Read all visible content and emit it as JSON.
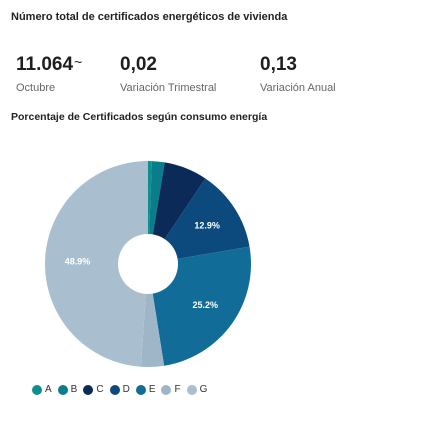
{
  "header": {
    "title": "Número total de certificados energéticos de vivienda"
  },
  "stats": [
    {
      "value": "11.064",
      "arrow": "~",
      "label": "Octubre"
    },
    {
      "value": "0,02",
      "label": "Variación Trimestral"
    },
    {
      "value": "0,13",
      "label": "Variación Anual"
    }
  ],
  "chart_data": {
    "type": "pie",
    "variant": "donut",
    "title": "Porcentaje de Certificados según consumo energía",
    "categories": [
      "A",
      "B",
      "C",
      "D",
      "E",
      "F",
      "G"
    ],
    "values": [
      0.6,
      2.0,
      6.8,
      12.9,
      25.2,
      3.6,
      48.9
    ],
    "data_labels": {
      "D": "12.9%",
      "E": "25.2%",
      "G": "48.9%"
    },
    "colors": {
      "A": "#0d8f8f",
      "B": "#0a7d8c",
      "C": "#0b2a57",
      "D": "#0c4a7e",
      "E": "#126c98",
      "F": "#9fb6c9",
      "G": "#a9bfd0"
    },
    "legend_position": "bottom-left"
  }
}
